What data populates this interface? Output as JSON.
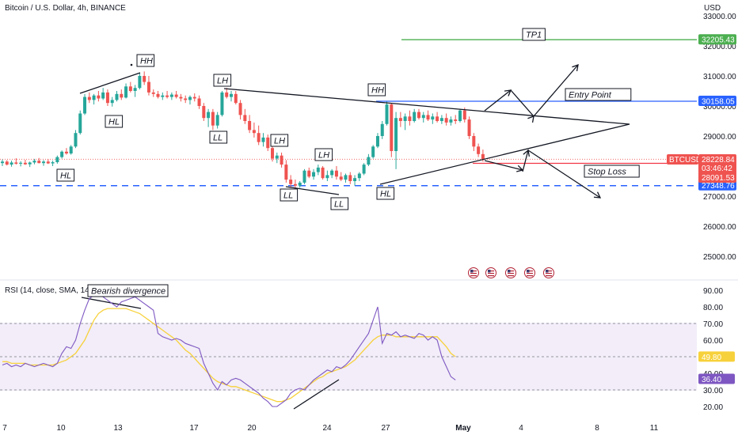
{
  "header": {
    "title": "Bitcoin / U.S. Dollar, 4h, BINANCE",
    "currency": "USD"
  },
  "rsi_panel": {
    "label": "RSI (14, close, SMA, 14, 2)"
  },
  "colors": {
    "up": "#26a69a",
    "down": "#ef5350",
    "tp_line": "#4caf50",
    "entry_line": "#2962ff",
    "stop_line": "#f23645",
    "dashed_support": "#2962ff",
    "rsi_line": "#7e57c2",
    "rsi_sma": "#f7d13b",
    "rsi_band": "#ede7f6"
  },
  "chart_data": [
    {
      "type": "candlestick",
      "title": "Bitcoin / U.S. Dollar, 4h, BINANCE",
      "ylim": [
        24300,
        33400
      ],
      "y_ticks": [
        "33000.00",
        "32000.00",
        "31000.00",
        "30000.00",
        "29000.00",
        "28000.00",
        "27000.00",
        "26000.00",
        "25000.00"
      ],
      "x_ticks": [
        "7",
        "10",
        "13",
        "17",
        "20",
        "24",
        "27",
        "May",
        "4",
        "8",
        "11"
      ],
      "ohlc": [
        [
          28100,
          28220,
          28000,
          28150
        ],
        [
          28150,
          28200,
          28020,
          28050
        ],
        [
          28050,
          28180,
          27980,
          28120
        ],
        [
          28120,
          28260,
          28050,
          28080
        ],
        [
          28080,
          28160,
          27990,
          28110
        ],
        [
          28110,
          28210,
          28040,
          28060
        ],
        [
          28060,
          28150,
          27970,
          28120
        ],
        [
          28120,
          28240,
          28060,
          28180
        ],
        [
          28180,
          28270,
          28090,
          28100
        ],
        [
          28100,
          28200,
          28010,
          28150
        ],
        [
          28150,
          28230,
          28070,
          28090
        ],
        [
          28090,
          28180,
          28000,
          28130
        ],
        [
          28130,
          28350,
          28080,
          28300
        ],
        [
          28300,
          28520,
          28250,
          28480
        ],
        [
          28480,
          28600,
          28380,
          28420
        ],
        [
          28420,
          28700,
          28380,
          28650
        ],
        [
          28650,
          29200,
          28600,
          29100
        ],
        [
          29100,
          29850,
          29050,
          29750
        ],
        [
          29750,
          30400,
          29700,
          30300
        ],
        [
          30300,
          30450,
          30100,
          30200
        ],
        [
          30200,
          30400,
          30050,
          30350
        ],
        [
          30350,
          30500,
          30150,
          30250
        ],
        [
          30250,
          30600,
          30200,
          30450
        ],
        [
          30450,
          30550,
          30000,
          30100
        ],
        [
          30100,
          30300,
          29980,
          30200
        ],
        [
          30200,
          30500,
          30150,
          30400
        ],
        [
          30400,
          30550,
          30200,
          30280
        ],
        [
          30280,
          30750,
          30250,
          30650
        ],
        [
          30650,
          30800,
          30450,
          30500
        ],
        [
          30500,
          30700,
          30300,
          30600
        ],
        [
          30600,
          31100,
          30550,
          31000
        ],
        [
          31000,
          31150,
          30700,
          30800
        ],
        [
          30800,
          31000,
          30350,
          30450
        ],
        [
          30450,
          30550,
          30300,
          30400
        ],
        [
          30400,
          30500,
          30250,
          30300
        ],
        [
          30300,
          30450,
          30200,
          30350
        ],
        [
          30350,
          30500,
          30250,
          30300
        ],
        [
          30300,
          30450,
          30200,
          30380
        ],
        [
          30380,
          30500,
          30250,
          30300
        ],
        [
          30300,
          30400,
          30150,
          30250
        ],
        [
          30250,
          30350,
          30100,
          30200
        ],
        [
          30200,
          30350,
          30050,
          30300
        ],
        [
          30300,
          30420,
          30150,
          30250
        ],
        [
          30250,
          30350,
          29900,
          30000
        ],
        [
          30000,
          30100,
          29500,
          29600
        ],
        [
          29600,
          29900,
          29300,
          29800
        ],
        [
          29800,
          29900,
          29200,
          29350
        ],
        [
          29350,
          29800,
          29250,
          29700
        ],
        [
          29700,
          30500,
          29650,
          30450
        ],
        [
          30450,
          30600,
          30250,
          30300
        ],
        [
          30300,
          30500,
          30150,
          30400
        ],
        [
          30400,
          30500,
          30050,
          30100
        ],
        [
          30100,
          30200,
          29550,
          29700
        ],
        [
          29700,
          29900,
          29400,
          29500
        ],
        [
          29500,
          29700,
          29100,
          29200
        ],
        [
          29200,
          29450,
          28950,
          29100
        ],
        [
          29100,
          29350,
          28700,
          28800
        ],
        [
          28800,
          29100,
          28650,
          28950
        ],
        [
          28950,
          29050,
          28500,
          28600
        ],
        [
          28600,
          28750,
          28150,
          28250
        ],
        [
          28250,
          28450,
          28100,
          28350
        ],
        [
          28350,
          28450,
          27950,
          28050
        ],
        [
          28050,
          28200,
          27450,
          27550
        ],
        [
          27550,
          27700,
          27300,
          27400
        ],
        [
          27400,
          27550,
          27250,
          27350
        ],
        [
          27350,
          27500,
          27280,
          27450
        ],
        [
          27450,
          27900,
          27400,
          27850
        ],
        [
          27850,
          27950,
          27600,
          27650
        ],
        [
          27650,
          27900,
          27550,
          27800
        ],
        [
          27800,
          28050,
          27700,
          27950
        ],
        [
          27950,
          28000,
          27550,
          27600
        ],
        [
          27600,
          27850,
          27500,
          27700
        ],
        [
          27700,
          27900,
          27600,
          27850
        ],
        [
          27850,
          28000,
          27550,
          27650
        ],
        [
          27650,
          27800,
          27500,
          27550
        ],
        [
          27550,
          27750,
          27450,
          27700
        ],
        [
          27700,
          27800,
          27400,
          27500
        ],
        [
          27500,
          27700,
          27350,
          27600
        ],
        [
          27600,
          27800,
          27500,
          27750
        ],
        [
          27750,
          28100,
          27700,
          28050
        ],
        [
          28050,
          28400,
          28000,
          28300
        ],
        [
          28300,
          28700,
          28250,
          28650
        ],
        [
          28650,
          29100,
          28600,
          29000
        ],
        [
          29000,
          29500,
          28900,
          29400
        ],
        [
          29400,
          30150,
          29350,
          30050
        ],
        [
          30050,
          30100,
          28300,
          28500
        ],
        [
          28500,
          29800,
          27900,
          29600
        ],
        [
          29600,
          29800,
          29300,
          29500
        ],
        [
          29500,
          29750,
          29200,
          29650
        ],
        [
          29650,
          29850,
          29350,
          29500
        ],
        [
          29500,
          29900,
          29450,
          29800
        ],
        [
          29800,
          29900,
          29550,
          29600
        ],
        [
          29600,
          29800,
          29450,
          29700
        ],
        [
          29700,
          29850,
          29500,
          29550
        ],
        [
          29550,
          29750,
          29400,
          29650
        ],
        [
          29650,
          29800,
          29450,
          29500
        ],
        [
          29500,
          29700,
          29400,
          29600
        ],
        [
          29600,
          29750,
          29350,
          29450
        ],
        [
          29450,
          29650,
          29350,
          29550
        ],
        [
          29550,
          29700,
          29400,
          29500
        ],
        [
          29500,
          29900,
          29450,
          29850
        ],
        [
          29850,
          29950,
          29450,
          29550
        ],
        [
          29550,
          29650,
          28900,
          29000
        ],
        [
          29000,
          29100,
          28500,
          28650
        ],
        [
          28650,
          28750,
          28300,
          28400
        ],
        [
          28400,
          28550,
          28150,
          28230
        ]
      ],
      "horizontal_levels": [
        {
          "label": "32205.43",
          "value": 32205.43,
          "role": "TP1"
        },
        {
          "label": "30158.05",
          "value": 30158.05,
          "role": "Entry Point"
        },
        {
          "label": "28091.53",
          "value": 28091.53,
          "role": "Stop Loss"
        },
        {
          "label": "27348.76",
          "value": 27348.76,
          "role": "support"
        }
      ],
      "last_price": {
        "symbol": "BTCUSD",
        "value": "28228.84",
        "timer": "03:46:42"
      },
      "annotations": [
        {
          "text": "HH"
        },
        {
          "text": "HL"
        },
        {
          "text": "HL"
        },
        {
          "text": "LH"
        },
        {
          "text": "LL"
        },
        {
          "text": "LH"
        },
        {
          "text": "LH"
        },
        {
          "text": "LL"
        },
        {
          "text": "LL"
        },
        {
          "text": "HH"
        },
        {
          "text": "HL"
        },
        {
          "text": "TP1"
        },
        {
          "text": "Entry Point"
        },
        {
          "text": "Stop Loss"
        }
      ]
    },
    {
      "type": "line",
      "title": "RSI (14, close, SMA, 14, 2)",
      "ylim": [
        15,
        95
      ],
      "y_ticks": [
        "90.00",
        "80.00",
        "70.00",
        "60.00",
        "50.00",
        "40.00",
        "30.00",
        "20.00"
      ],
      "series": [
        {
          "name": "RSI",
          "values": [
            45,
            46,
            44,
            45,
            44,
            46,
            45,
            44,
            45,
            46,
            45,
            44,
            46,
            52,
            56,
            55,
            60,
            70,
            78,
            85,
            87,
            88,
            86,
            84,
            82,
            80,
            83,
            84,
            85,
            86,
            84,
            82,
            80,
            78,
            64,
            62,
            61,
            60,
            61,
            60,
            58,
            57,
            56,
            55,
            46,
            40,
            34,
            30,
            35,
            33,
            36,
            37,
            36,
            34,
            32,
            30,
            28,
            25,
            23,
            20,
            20,
            22,
            24,
            28,
            30,
            31,
            30,
            33,
            36,
            38,
            40,
            42,
            41,
            44,
            43,
            45,
            48,
            52,
            56,
            60,
            64,
            72,
            80,
            58,
            64,
            63,
            65,
            62,
            63,
            62,
            61,
            64,
            63,
            60,
            62,
            60,
            50,
            44,
            38,
            36
          ]
        },
        {
          "name": "SMA",
          "values": [
            47,
            47,
            46,
            46,
            46,
            46,
            45,
            45,
            45,
            45,
            45,
            45,
            46,
            47,
            48,
            50,
            52,
            56,
            60,
            66,
            72,
            76,
            78,
            79,
            79,
            79,
            79,
            79,
            78,
            77,
            76,
            74,
            72,
            70,
            68,
            66,
            64,
            62,
            60,
            57,
            54,
            52,
            49,
            46,
            43,
            40,
            37,
            35,
            34,
            33,
            32,
            32,
            31,
            30,
            29,
            28,
            27,
            26,
            25,
            24,
            23,
            23,
            24,
            25,
            27,
            29,
            31,
            33,
            35,
            37,
            38,
            40,
            41,
            42,
            43,
            44,
            46,
            48,
            51,
            54,
            57,
            60,
            62,
            63,
            63,
            63,
            62,
            62,
            62,
            62,
            62,
            62,
            62,
            62,
            62,
            62,
            59,
            56,
            52,
            50
          ]
        }
      ],
      "levels": [
        {
          "label": "49.80",
          "value": 49.8
        },
        {
          "label": "36.40",
          "value": 36.4
        }
      ],
      "annotations": [
        {
          "text": "Bearish divergence"
        }
      ]
    }
  ]
}
